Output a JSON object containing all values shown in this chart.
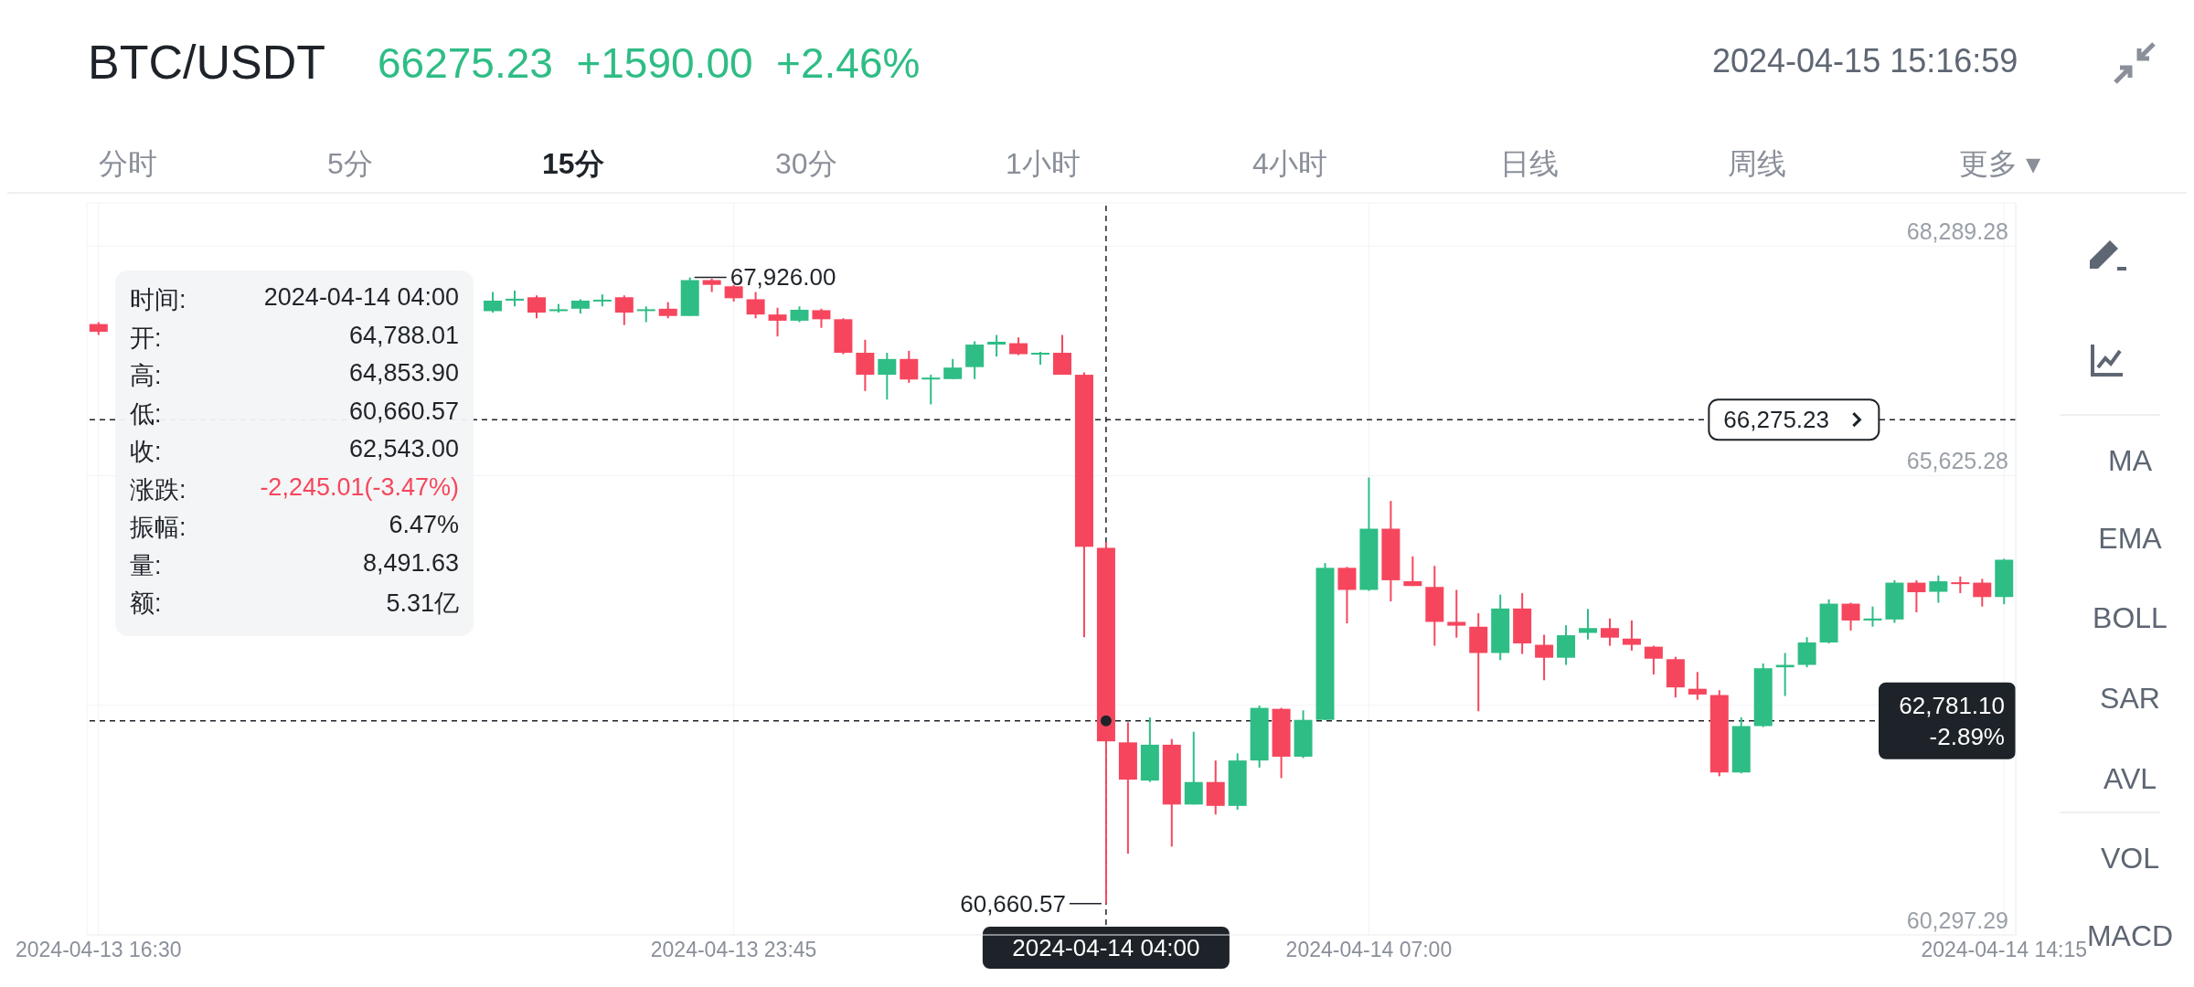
{
  "chart_data": {
    "type": "candlestick",
    "title": "BTC/USDT",
    "subtitle": "66275.23  +1590.00  +2.46%",
    "x": [
      "2024-04-13T16:30",
      "2024-04-13T21:00",
      "2024-04-13T21:15",
      "2024-04-13T21:30",
      "2024-04-13T21:45",
      "2024-04-13T22:00",
      "2024-04-13T22:15",
      "2024-04-13T22:30",
      "2024-04-13T22:45",
      "2024-04-13T23:00",
      "2024-04-13T23:15",
      "2024-04-13T23:30",
      "2024-04-13T23:45",
      "2024-04-14T00:00",
      "2024-04-14T00:15",
      "2024-04-14T00:30",
      "2024-04-14T00:45",
      "2024-04-14T01:00",
      "2024-04-14T01:15",
      "2024-04-14T01:30",
      "2024-04-14T01:45",
      "2024-04-14T02:00",
      "2024-04-14T02:15",
      "2024-04-14T02:30",
      "2024-04-14T02:45",
      "2024-04-14T03:00",
      "2024-04-14T03:15",
      "2024-04-14T03:30",
      "2024-04-14T03:45",
      "2024-04-14T04:00",
      "2024-04-14T04:15",
      "2024-04-14T04:30",
      "2024-04-14T04:45",
      "2024-04-14T05:00",
      "2024-04-14T05:15",
      "2024-04-14T05:30",
      "2024-04-14T05:45",
      "2024-04-14T06:00",
      "2024-04-14T06:15",
      "2024-04-14T06:30",
      "2024-04-14T06:45",
      "2024-04-14T07:00",
      "2024-04-14T07:15",
      "2024-04-14T07:30",
      "2024-04-14T07:45",
      "2024-04-14T08:00",
      "2024-04-14T08:15",
      "2024-04-14T08:30",
      "2024-04-14T08:45",
      "2024-04-14T09:00",
      "2024-04-14T09:15",
      "2024-04-14T09:30",
      "2024-04-14T09:45",
      "2024-04-14T10:00",
      "2024-04-14T10:15",
      "2024-04-14T10:30",
      "2024-04-14T10:45",
      "2024-04-14T11:00",
      "2024-04-14T11:15",
      "2024-04-14T11:30",
      "2024-04-14T11:45",
      "2024-04-14T12:00",
      "2024-04-14T12:15",
      "2024-04-14T12:30",
      "2024-04-14T12:45",
      "2024-04-14T13:00",
      "2024-04-14T13:15",
      "2024-04-14T13:30",
      "2024-04-14T13:45",
      "2024-04-14T14:00",
      "2024-04-14T14:15"
    ],
    "ohlc": [
      [
        67384,
        67406,
        67257,
        67295
      ],
      [
        67534,
        67756,
        67517,
        67656
      ],
      [
        67656,
        67772,
        67589,
        67678
      ],
      [
        67695,
        67717,
        67451,
        67517
      ],
      [
        67534,
        67617,
        67517,
        67556
      ],
      [
        67562,
        67672,
        67506,
        67656
      ],
      [
        67650,
        67728,
        67589,
        67667
      ],
      [
        67695,
        67717,
        67373,
        67517
      ],
      [
        67539,
        67589,
        67406,
        67556
      ],
      [
        67562,
        67639,
        67451,
        67478
      ],
      [
        67478,
        67926,
        67478,
        67894
      ],
      [
        67894,
        67911,
        67756,
        67839
      ],
      [
        67822,
        67839,
        67645,
        67684
      ],
      [
        67672,
        67756,
        67451,
        67495
      ],
      [
        67495,
        67573,
        67240,
        67423
      ],
      [
        67423,
        67589,
        67406,
        67550
      ],
      [
        67545,
        67562,
        67340,
        67440
      ],
      [
        67440,
        67451,
        67035,
        67051
      ],
      [
        67051,
        67201,
        66608,
        66796
      ],
      [
        66796,
        67051,
        66508,
        66979
      ],
      [
        66979,
        67074,
        66702,
        66741
      ],
      [
        66741,
        66796,
        66452,
        66763
      ],
      [
        66746,
        66979,
        66746,
        66879
      ],
      [
        66885,
        67184,
        66746,
        67146
      ],
      [
        67146,
        67257,
        67007,
        67179
      ],
      [
        67162,
        67229,
        67024,
        67035
      ],
      [
        67035,
        67062,
        66913,
        67051
      ],
      [
        67051,
        67257,
        66796,
        66796
      ],
      [
        66796,
        66824,
        63751,
        64800
      ],
      [
        64788.01,
        64853.9,
        60660.57,
        62543.0
      ],
      [
        62531,
        62764,
        61239,
        62099
      ],
      [
        62088,
        62820,
        62071,
        62504
      ],
      [
        62504,
        62570,
        61322,
        61810
      ],
      [
        61810,
        62654,
        61810,
        62071
      ],
      [
        62071,
        62321,
        61694,
        61794
      ],
      [
        61794,
        62404,
        61749,
        62321
      ],
      [
        62321,
        62958,
        62238,
        62931
      ],
      [
        62920,
        62931,
        62116,
        62365
      ],
      [
        62365,
        62903,
        62349,
        62792
      ],
      [
        62792,
        64611,
        62792,
        64556
      ],
      [
        64556,
        64567,
        63912,
        64300
      ],
      [
        64300,
        65604,
        64289,
        65010
      ],
      [
        65010,
        65332,
        64167,
        64412
      ],
      [
        64401,
        64689,
        64345,
        64345
      ],
      [
        64334,
        64578,
        63652,
        63929
      ],
      [
        63929,
        64300,
        63746,
        63885
      ],
      [
        63873,
        64029,
        62892,
        63568
      ],
      [
        63568,
        64245,
        63485,
        64084
      ],
      [
        64084,
        64262,
        63557,
        63679
      ],
      [
        63663,
        63779,
        63252,
        63513
      ],
      [
        63513,
        63890,
        63430,
        63774
      ],
      [
        63801,
        64079,
        63724,
        63857
      ],
      [
        63857,
        63968,
        63652,
        63746
      ],
      [
        63735,
        63945,
        63596,
        63663
      ],
      [
        63641,
        63652,
        63319,
        63502
      ],
      [
        63496,
        63524,
        63053,
        63169
      ],
      [
        63153,
        63347,
        63025,
        63086
      ],
      [
        63080,
        63136,
        62138,
        62182
      ],
      [
        62182,
        62820,
        62171,
        62720
      ],
      [
        62720,
        63446,
        62709,
        63391
      ],
      [
        63402,
        63568,
        63069,
        63430
      ],
      [
        63430,
        63751,
        63402,
        63690
      ],
      [
        63690,
        64190,
        63679,
        64140
      ],
      [
        64140,
        64151,
        63829,
        63945
      ],
      [
        63945,
        64107,
        63873,
        63968
      ],
      [
        63957,
        64412,
        63918,
        64384
      ],
      [
        64384,
        64412,
        64040,
        64273
      ],
      [
        64278,
        64467,
        64151,
        64400
      ],
      [
        64389,
        64456,
        64262,
        64367
      ],
      [
        64384,
        64428,
        64107,
        64217
      ],
      [
        64217,
        64661,
        64134,
        64650
      ]
    ],
    "colors": [
      "#f6465d",
      "#2ebd85",
      "#2ebd85",
      "#f6465d",
      "#2ebd85",
      "#2ebd85",
      "#2ebd85",
      "#f6465d",
      "#2ebd85",
      "#f6465d",
      "#2ebd85",
      "#f6465d",
      "#f6465d",
      "#f6465d",
      "#f6465d",
      "#2ebd85",
      "#f6465d",
      "#f6465d",
      "#f6465d",
      "#2ebd85",
      "#f6465d",
      "#2ebd85",
      "#2ebd85",
      "#2ebd85",
      "#2ebd85",
      "#f6465d",
      "#2ebd85",
      "#f6465d",
      "#f6465d",
      "#f6465d",
      "#f6465d",
      "#2ebd85",
      "#f6465d",
      "#2ebd85",
      "#f6465d",
      "#2ebd85",
      "#2ebd85",
      "#f6465d",
      "#2ebd85",
      "#2ebd85",
      "#f6465d",
      "#2ebd85",
      "#f6465d",
      "#f6465d",
      "#f6465d",
      "#f6465d",
      "#f6465d",
      "#2ebd85",
      "#f6465d",
      "#f6465d",
      "#2ebd85",
      "#2ebd85",
      "#f6465d",
      "#f6465d",
      "#f6465d",
      "#f6465d",
      "#f6465d",
      "#f6465d",
      "#2ebd85",
      "#2ebd85",
      "#2ebd85",
      "#2ebd85",
      "#2ebd85",
      "#f6465d",
      "#2ebd85",
      "#2ebd85",
      "#f6465d",
      "#2ebd85",
      "#f6465d",
      "#f6465d",
      "#2ebd85"
    ],
    "xlim": [
      "2024-04-13T16:22",
      "2024-04-14T14:23"
    ],
    "xticks": [
      {
        "value": "2024-04-13T16:30",
        "label": "2024-04-13 16:30"
      },
      {
        "value": "2024-04-13T23:45",
        "label": "2024-04-13 23:45"
      },
      {
        "value": "2024-04-14T07:00",
        "label": "2024-04-14 07:00"
      },
      {
        "value": "2024-04-14T14:15",
        "label": "2024-04-14 14:15"
      }
    ],
    "ylim": [
      60297.29,
      68790
    ],
    "yticks": [
      {
        "value": 60297.29,
        "label": "60,297.29"
      },
      {
        "value": 62961.28,
        "label": null
      },
      {
        "value": 65625.28,
        "label": "65,625.28"
      },
      {
        "value": 68289.28,
        "label": "68,289.28"
      }
    ],
    "grid": true,
    "ref_lines": [
      {
        "axis": "y",
        "value": 66275.23,
        "label": "66,275.23",
        "line_style": "dashed",
        "color": "#1e2329"
      },
      {
        "axis": "y",
        "value": 62781.1,
        "label": "62,781.10\n-2.89%",
        "line_style": "dashed",
        "color": "#1e2329"
      },
      {
        "axis": "x",
        "value": "2024-04-14T04:00",
        "label": "2024-04-14 04:00",
        "line_style": "dashed",
        "color": "#1e2329"
      }
    ],
    "annotations": [
      "2024-04-15 15:16:59",
      "分时",
      "5分",
      "15分",
      "30分",
      "1小时",
      "4小时",
      "日线",
      "周线",
      "更多 ▾",
      "MA",
      "EMA",
      "BOLL",
      "SAR",
      "AVL",
      "VOL",
      "MACD",
      "时间:",
      "2024-04-14 04:00",
      "开:",
      "64,788.01",
      "高:",
      "64,853.90",
      "低:",
      "60,660.57",
      "收:",
      "62,543.00",
      "涨跌:",
      "-2,245.01(-3.47%)",
      "振幅:",
      "6.47%",
      "量:",
      "8,491.63",
      "额:",
      "5.31亿",
      {
        "text": "67,926.00",
        "x": "2024-04-13T23:15",
        "y": 67926
      },
      {
        "text": "60,660.57",
        "x": "2024-04-14T04:00",
        "y": 60660.57
      }
    ]
  }
}
